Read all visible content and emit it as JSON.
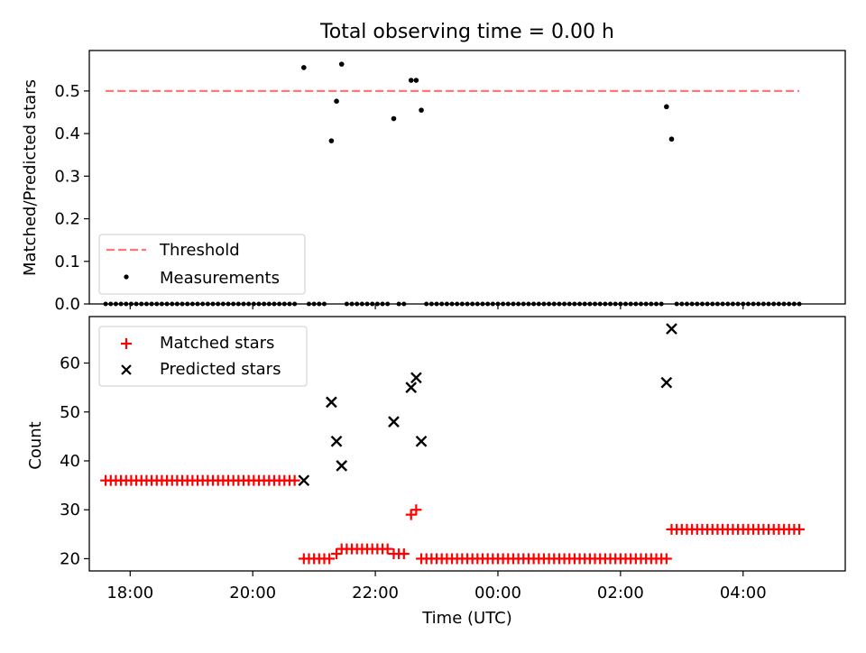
{
  "chart_data": [
    {
      "type": "scatter",
      "title": "Total observing time = 0.00 h",
      "xlabel": "",
      "ylabel": "Matched/Predicted stars",
      "xlim": [
        "17:20",
        "05:40"
      ],
      "ylim": [
        0,
        0.595
      ],
      "yticks": [
        "0.0",
        "0.1",
        "0.2",
        "0.3",
        "0.4",
        "0.5"
      ],
      "xticks": [
        "18:00",
        "20:00",
        "22:00",
        "00:00",
        "02:00",
        "04:00"
      ],
      "threshold": {
        "name": "Threshold",
        "color": "#ff7777",
        "x_start": "17:36",
        "x_end": "04:55",
        "y": 0.5
      },
      "measurements": {
        "name": "Measurements",
        "color": "#000000",
        "points": [
          [
            "20:50",
            0.555
          ],
          [
            "21:17",
            0.383
          ],
          [
            "21:22",
            0.476
          ],
          [
            "21:27",
            0.563
          ],
          [
            "22:18",
            0.435
          ],
          [
            "22:35",
            0.525
          ],
          [
            "22:40",
            0.525
          ],
          [
            "22:45",
            0.455
          ],
          [
            "02:45",
            0.463
          ],
          [
            "02:50",
            0.387
          ]
        ],
        "zero_runs": [
          [
            "17:36",
            "20:45"
          ],
          [
            "20:55",
            "21:12"
          ],
          [
            "21:32",
            "22:13"
          ],
          [
            "22:23",
            "22:30"
          ],
          [
            "22:50",
            "02:40"
          ],
          [
            "02:55",
            "04:55"
          ]
        ],
        "interval_minutes": 5
      },
      "legend": {
        "location": "lower-left",
        "entries": [
          "Threshold",
          "Measurements"
        ]
      }
    },
    {
      "type": "scatter",
      "title": "",
      "xlabel": "Time (UTC)",
      "ylabel": "Count",
      "xlim": [
        "17:20",
        "05:40"
      ],
      "ylim": [
        17.5,
        69.5
      ],
      "yticks": [
        "20",
        "30",
        "40",
        "50",
        "60"
      ],
      "xticks": [
        "18:00",
        "20:00",
        "22:00",
        "00:00",
        "02:00",
        "04:00"
      ],
      "matched": {
        "name": "Matched stars",
        "color": "#ff0000",
        "runs": [
          {
            "from": "17:36",
            "to": "20:45",
            "value": 36
          },
          {
            "from": "20:50",
            "to": "21:17",
            "value": 20
          },
          {
            "from": "21:22",
            "to": "21:22",
            "value": 21
          },
          {
            "from": "21:27",
            "to": "22:13",
            "value": 22
          },
          {
            "from": "22:18",
            "to": "22:30",
            "value": 21
          },
          {
            "from": "22:35",
            "to": "22:35",
            "value": 29
          },
          {
            "from": "22:40",
            "to": "22:40",
            "value": 30
          },
          {
            "from": "22:45",
            "to": "02:45",
            "value": 20
          },
          {
            "from": "02:50",
            "to": "04:55",
            "value": 26
          }
        ],
        "interval_minutes": 5
      },
      "predicted": {
        "name": "Predicted stars",
        "color": "#000000",
        "points": [
          [
            "20:50",
            36
          ],
          [
            "21:17",
            52
          ],
          [
            "21:22",
            44
          ],
          [
            "21:27",
            39
          ],
          [
            "22:18",
            48
          ],
          [
            "22:35",
            55
          ],
          [
            "22:40",
            57
          ],
          [
            "22:45",
            44
          ],
          [
            "02:45",
            56
          ],
          [
            "02:50",
            67
          ]
        ]
      },
      "legend": {
        "location": "upper-left",
        "entries": [
          "Matched stars",
          "Predicted stars"
        ]
      }
    }
  ]
}
